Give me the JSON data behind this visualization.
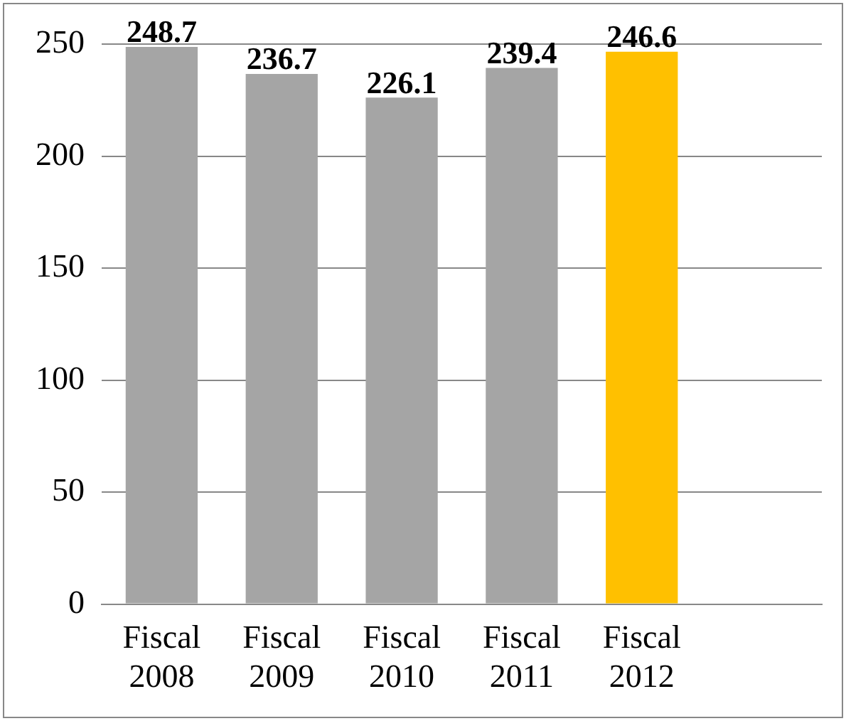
{
  "chart_data": {
    "type": "bar",
    "categories": [
      "Fiscal 2008",
      "Fiscal 2009",
      "Fiscal 2010",
      "Fiscal 2011",
      "Fiscal 2012",
      null
    ],
    "values": [
      248.7,
      236.7,
      226.1,
      239.4,
      246.6,
      null
    ],
    "colors": [
      "#a5a5a5",
      "#a5a5a5",
      "#a5a5a5",
      "#a5a5a5",
      "#ffc000",
      "#a5a5a5"
    ],
    "ylim": [
      0,
      250
    ],
    "yticks": [
      0,
      50,
      100,
      150,
      200,
      250
    ],
    "grid": "y",
    "data_labels": true,
    "legend": false
  }
}
